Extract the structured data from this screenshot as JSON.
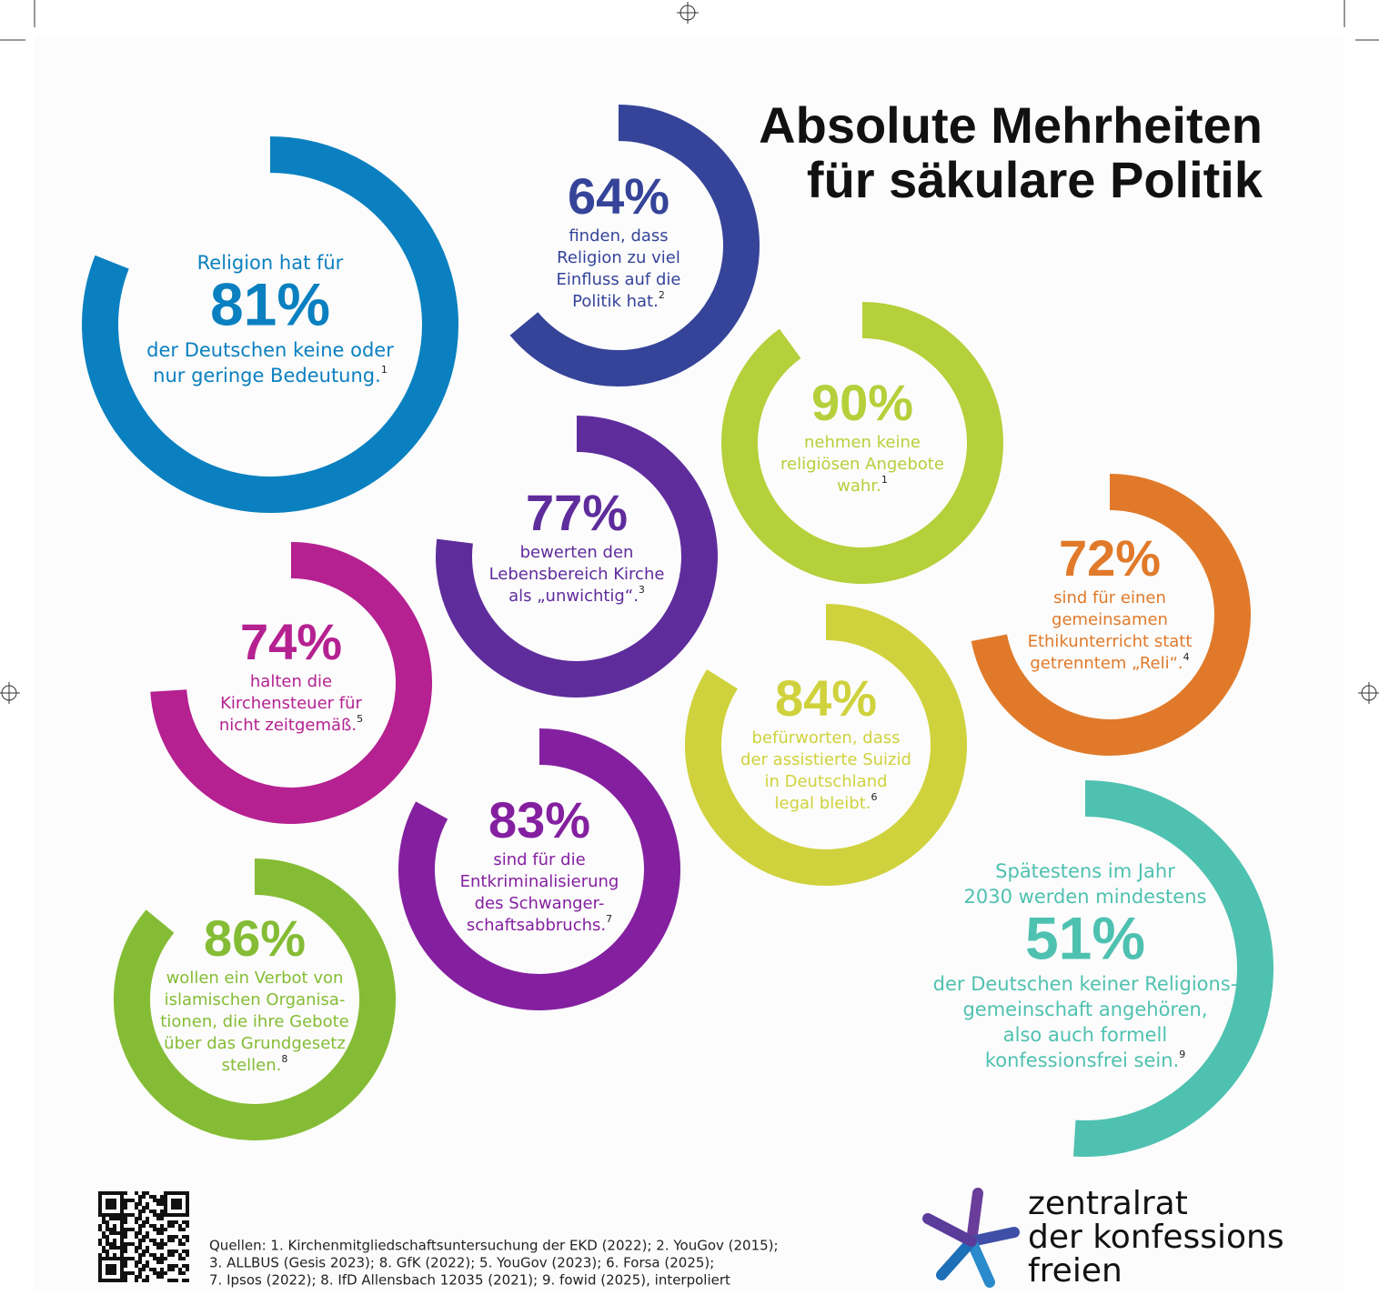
{
  "title": [
    "Absolute Mehrheiten",
    "für säkulare Politik"
  ],
  "items": [
    {
      "value": 81,
      "value_label": "81%",
      "before": [
        "Religion hat für"
      ],
      "lines": [
        "der Deutschen keine oder",
        "nur geringe Bedeutung."
      ],
      "note": "1",
      "color": "#0a80c0"
    },
    {
      "value": 64,
      "value_label": "64%",
      "lines": [
        "finden, dass",
        "Religion zu viel",
        "Einfluss auf die",
        "Politik hat."
      ],
      "note": "2",
      "color": "#354499"
    },
    {
      "value": 90,
      "value_label": "90%",
      "lines": [
        "nehmen keine",
        "religiösen Angebote",
        "wahr."
      ],
      "note": "1",
      "color": "#b5d03b"
    },
    {
      "value": 72,
      "value_label": "72%",
      "lines": [
        "sind für einen",
        "gemeinsamen",
        "Ethikunterricht statt",
        "getrenntem „Reli“."
      ],
      "note": "4",
      "color": "#e07a2a"
    },
    {
      "value": 77,
      "value_label": "77%",
      "lines": [
        "bewerten den",
        "Lebensbereich Kirche",
        "als „unwichtig“."
      ],
      "note": "3",
      "color": "#5f2c9c"
    },
    {
      "value": 74,
      "value_label": "74%",
      "lines": [
        "halten die",
        "Kirchensteuer für",
        "nicht zeitgemäß."
      ],
      "note": "5",
      "color": "#b52191"
    },
    {
      "value": 84,
      "value_label": "84%",
      "lines": [
        "befürworten, dass",
        "der assistierte Suizid",
        "in Deutschland",
        "legal bleibt."
      ],
      "note": "6",
      "color": "#cfd23c"
    },
    {
      "value": 83,
      "value_label": "83%",
      "lines": [
        "sind für die",
        "Entkriminalisierung",
        "des Schwanger-",
        "schaftsabbruchs."
      ],
      "note": "7",
      "color": "#8420a0"
    },
    {
      "value": 86,
      "value_label": "86%",
      "lines": [
        "wollen ein Verbot von",
        "islamischen Organisa-",
        "tionen, die ihre Gebote",
        "über das Grundgesetz",
        "stellen."
      ],
      "note": "8",
      "color": "#85bc35"
    },
    {
      "value": 51,
      "value_label": "51%",
      "before": [
        "Spätestens im Jahr",
        "2030 werden mindestens"
      ],
      "lines": [
        "der Deutschen keiner Religions-",
        "gemeinschaft angehören,",
        "also auch formell",
        "konfessionsfrei sein."
      ],
      "note": "9",
      "color": "#4fc1b0"
    }
  ],
  "sources": [
    "Quellen: 1. Kirchenmitgliedschaftsuntersuchung der EKD (2022); 2. YouGov (2015);",
    "3. ALLBUS (Gesis 2023); 8. GfK (2022); 5. YouGov (2023); 6. Forsa (2025);",
    "7. Ipsos (2022); 8. IfD Allensbach 12035 (2021); 9. fowid (2025), interpoliert"
  ],
  "logo": [
    "zentralrat",
    "der konfessions",
    "freien"
  ]
}
